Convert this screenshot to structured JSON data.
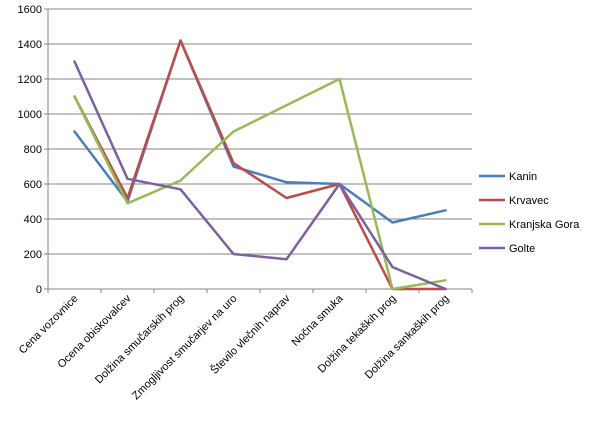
{
  "chart_data": {
    "type": "line",
    "title": "",
    "xlabel": "",
    "ylabel": "",
    "categories": [
      "Cena vozovnice",
      "Ocena obiskovalcev",
      "Dolžina smučarskih prog",
      "Zmogljivost smučarjev na uro",
      "Število vlečnih naprav",
      "Nočna smuka",
      "Dolžina tekaških prog",
      "Dolžina sankaških prog"
    ],
    "ylim": [
      0,
      1600
    ],
    "yticks": [
      0,
      200,
      400,
      600,
      800,
      1000,
      1200,
      1400,
      1600
    ],
    "grid": true,
    "legend_position": "right",
    "series": [
      {
        "name": "Kanin",
        "color": "#4a7ebb",
        "values": [
          900,
          500,
          1420,
          700,
          610,
          600,
          380,
          450
        ]
      },
      {
        "name": "Krvavec",
        "color": "#be4b48",
        "values": [
          1100,
          520,
          1420,
          720,
          520,
          600,
          0,
          0
        ]
      },
      {
        "name": "Kranjska Gora",
        "color": "#98b954",
        "values": [
          1100,
          490,
          620,
          900,
          1050,
          1200,
          0,
          50
        ]
      },
      {
        "name": "Golte",
        "color": "#7d60a0",
        "values": [
          1300,
          630,
          570,
          200,
          170,
          600,
          125,
          0
        ]
      }
    ]
  }
}
